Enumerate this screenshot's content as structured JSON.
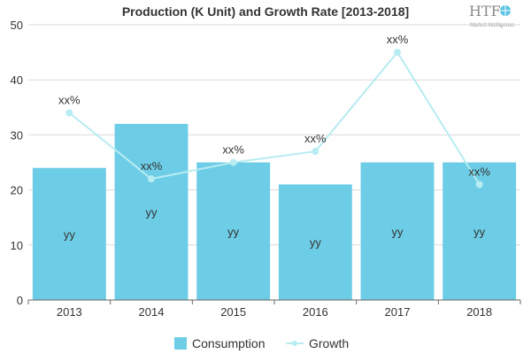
{
  "chart_data": {
    "type": "bar",
    "title": "Production (K Unit) and Growth Rate [2013-2018]",
    "categories": [
      "2013",
      "2014",
      "2015",
      "2016",
      "2017",
      "2018"
    ],
    "series": [
      {
        "name": "Consumption",
        "type": "bar",
        "values": [
          24,
          32,
          25,
          21,
          25,
          25
        ],
        "color": "#6dcde6",
        "labels": [
          "yy",
          "yy",
          "yy",
          "yy",
          "yy",
          "yy"
        ]
      },
      {
        "name": "Growth",
        "type": "line",
        "values": [
          34,
          22,
          25,
          27,
          45,
          21
        ],
        "color": "#b7ecf2",
        "labels": [
          "xx%",
          "xx%",
          "xx%",
          "xx%",
          "xx%",
          "xx%"
        ]
      }
    ],
    "ylim": [
      0,
      50
    ],
    "yticks": [
      "0",
      "10",
      "20",
      "30",
      "40",
      "50"
    ],
    "grid": true,
    "legend_position": "bottom"
  },
  "logo": {
    "text": "HTF",
    "subtext": "Market Intelligence"
  }
}
